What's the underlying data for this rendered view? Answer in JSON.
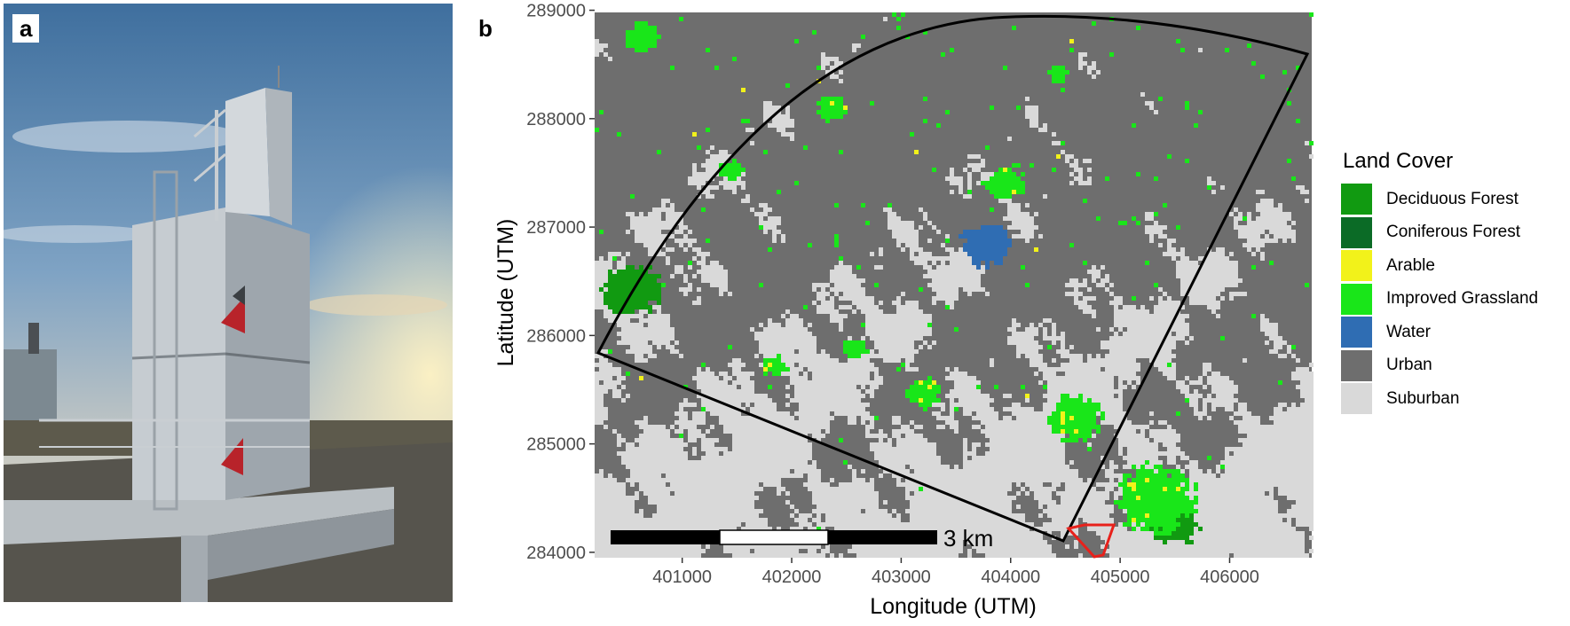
{
  "panels": {
    "a_label": "a",
    "b_label": "b"
  },
  "map": {
    "xlabel": "Longitude (UTM)",
    "ylabel": "Latitude (UTM)",
    "x_ticks": [
      "401000",
      "402000",
      "403000",
      "404000",
      "405000",
      "406000"
    ],
    "y_ticks": [
      "284000",
      "285000",
      "286000",
      "287000",
      "288000",
      "289000"
    ],
    "x_range": [
      400200,
      406750
    ],
    "y_range": [
      283950,
      288980
    ],
    "scale_bar_label": "3 km",
    "footprint_color": "#000000",
    "site_marker_color": "#e8211b"
  },
  "legend": {
    "title": "Land Cover",
    "items": [
      {
        "label": "Deciduous Forest",
        "color": "#119a11"
      },
      {
        "label": "Coniferous Forest",
        "color": "#0b6b26"
      },
      {
        "label": "Arable",
        "color": "#f2f21a"
      },
      {
        "label": "Improved Grassland",
        "color": "#19e619"
      },
      {
        "label": "Water",
        "color": "#2f6db3"
      },
      {
        "label": "Urban",
        "color": "#6e6e6e"
      },
      {
        "label": "Suburban",
        "color": "#d9d9d9"
      }
    ]
  }
}
